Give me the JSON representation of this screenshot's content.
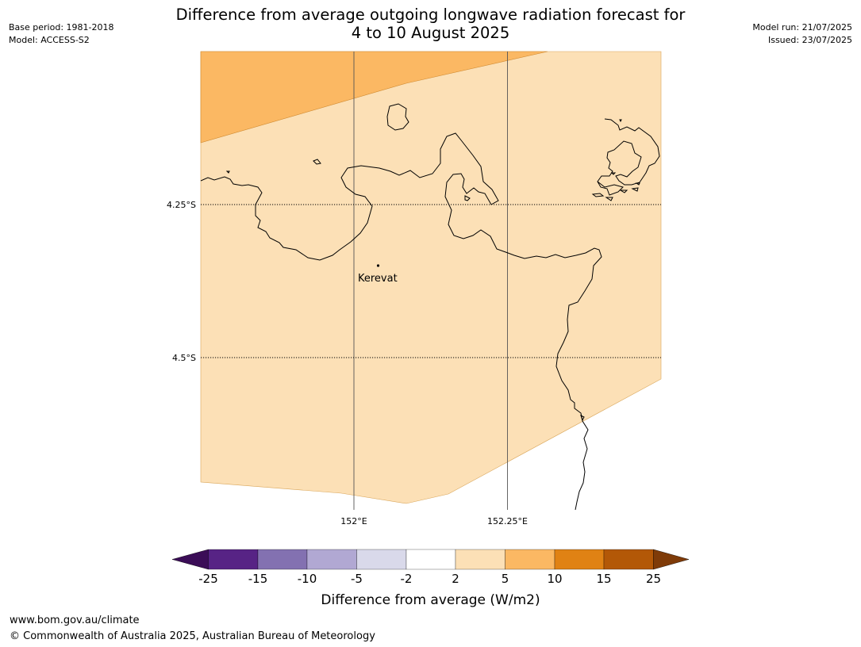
{
  "header": {
    "base_period": "Base period: 1981-2018",
    "model": "Model: ACCESS-S2",
    "model_run": "Model run: 21/07/2025",
    "issued": "Issued: 23/07/2025",
    "title_line1": "Difference from average outgoing longwave radiation forecast for",
    "title_line2": "4 to 10 August 2025"
  },
  "map": {
    "lat_labels": [
      "4.25°S",
      "4.5°S"
    ],
    "lon_labels": [
      "152°E",
      "152.25°E"
    ],
    "place": {
      "name": "Kerevat"
    },
    "colors": {
      "band_2_5": "#fce0b6",
      "band_5_10": "#fbb863",
      "coast": "#000000",
      "grid": "#555555"
    }
  },
  "colorbar": {
    "label": "Difference from average (W/m2)",
    "ticks": [
      "-25",
      "-15",
      "-10",
      "-5",
      "-2",
      "2",
      "5",
      "10",
      "15",
      "25"
    ],
    "colors": [
      "#3b0d57",
      "#572385",
      "#8371b1",
      "#b1a8d3",
      "#d9d9ea",
      "#ffffff",
      "#fce0b6",
      "#fbb863",
      "#e08214",
      "#b35807",
      "#7f3b08"
    ]
  },
  "footer": {
    "url": "www.bom.gov.au/climate",
    "copyright": "© Commonwealth of Australia 2025, Australian Bureau of Meteorology"
  }
}
